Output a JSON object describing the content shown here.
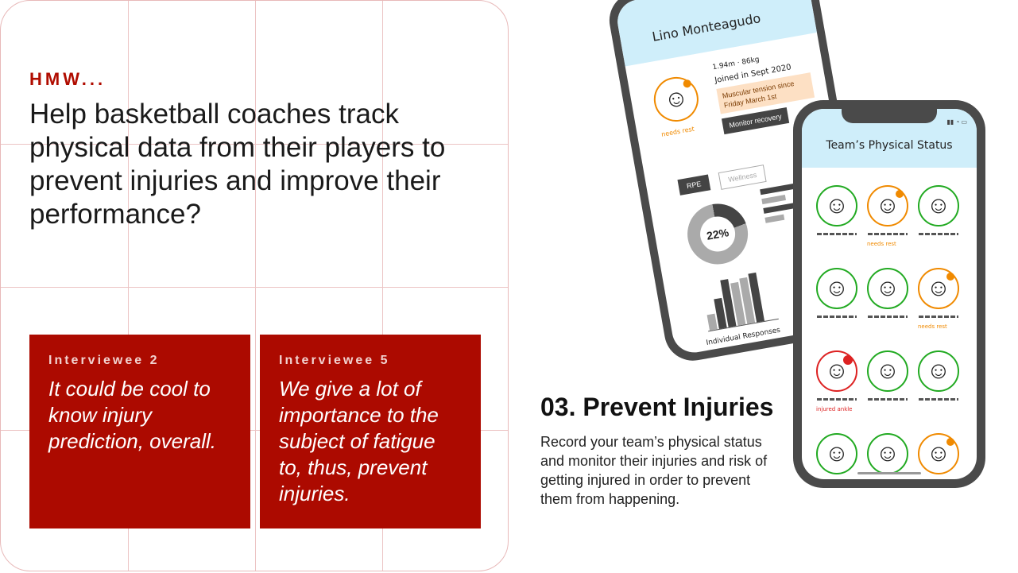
{
  "hmw": {
    "kicker": "HMW...",
    "question": "Help basketball coaches track physical data from their players to prevent injuries and improve their performance?"
  },
  "quotes": [
    {
      "who": "Interviewee 2",
      "text": "It could be cool to know injury prediction, overall."
    },
    {
      "who": "Interviewee 5",
      "text": "We give a lot of importance to the subject of fatigue to, thus, prevent injuries."
    }
  ],
  "feature": {
    "title": "03. Prevent Injuries",
    "description": "Record your team’s physical status and monitor their injuries and risk of getting injured in order to prevent them from happening."
  },
  "player_screen": {
    "name": "Lino Monteagudo",
    "stats": "1.94m · 86kg",
    "joined": "Joined in Sept 2020",
    "status": "needs rest",
    "alert": "Muscular tension since Friday March 1st",
    "button": "Monitor recovery",
    "tabs": [
      "RPE",
      "Wellness"
    ],
    "donut_value": "22%",
    "footer": "Individual Responses"
  },
  "team_screen": {
    "title": "Team’s Physical Status",
    "players": [
      {
        "state": "green",
        "label": ""
      },
      {
        "state": "orange",
        "label": "needs rest"
      },
      {
        "state": "green",
        "label": ""
      },
      {
        "state": "green",
        "label": ""
      },
      {
        "state": "green",
        "label": ""
      },
      {
        "state": "orange",
        "label": "needs rest"
      },
      {
        "state": "red",
        "label": "injured ankle"
      },
      {
        "state": "green",
        "label": ""
      },
      {
        "state": "green",
        "label": ""
      },
      {
        "state": "green",
        "label": ""
      },
      {
        "state": "green",
        "label": ""
      },
      {
        "state": "orange",
        "label": ""
      }
    ]
  },
  "colors": {
    "accent": "#ac0a00",
    "kicker": "#b00c00",
    "screen_header": "#cfeefa",
    "ok": "#22aa22",
    "warn": "#f08a00",
    "injured": "#dd2222"
  },
  "icons": {
    "face": "smiley-face-icon"
  }
}
